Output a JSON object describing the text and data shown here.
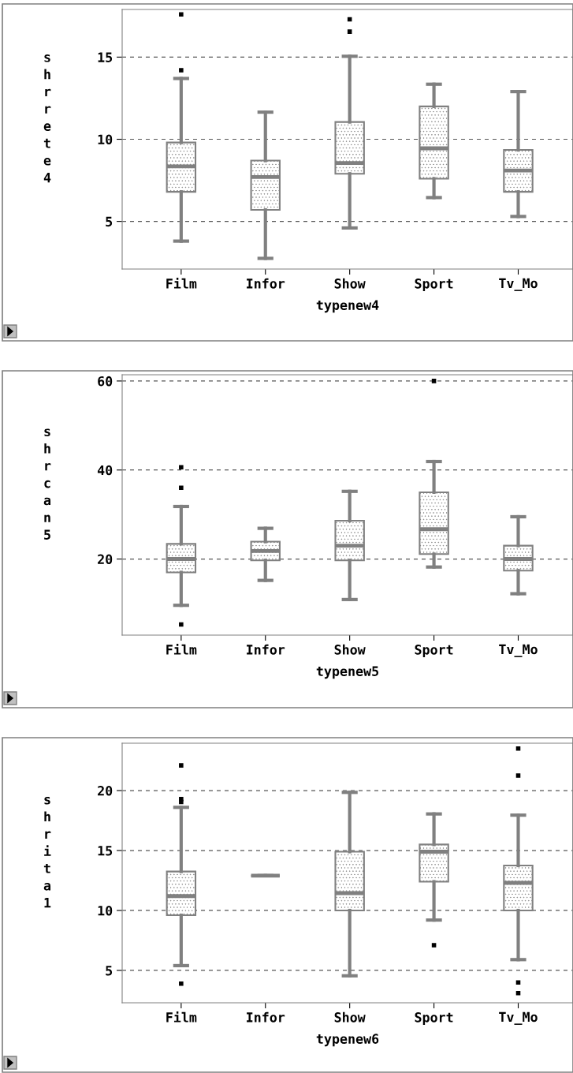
{
  "chart_data": [
    {
      "type": "box",
      "xlabel": "typenew4",
      "ylabel": "shrrete4",
      "categories": [
        "Film",
        "Infor",
        "Show",
        "Sport",
        "Tv_Mo"
      ],
      "color": "#808080",
      "grid": "y",
      "ylim": [
        2.1,
        17.9
      ],
      "yticks": [
        5,
        10,
        15
      ],
      "boxes": [
        {
          "low": 3.8,
          "q1": 6.8,
          "median": 8.35,
          "q3": 9.8,
          "high": 13.7,
          "outliers": [
            14.2,
            17.6
          ]
        },
        {
          "low": 2.75,
          "q1": 5.7,
          "median": 7.7,
          "q3": 8.7,
          "high": 11.65
        },
        {
          "low": 4.6,
          "q1": 7.9,
          "median": 8.55,
          "q3": 11.05,
          "high": 15.05,
          "outliers": [
            16.55,
            17.3
          ]
        },
        {
          "low": 6.45,
          "q1": 7.6,
          "median": 9.45,
          "q3": 12.0,
          "high": 13.35
        },
        {
          "low": 5.3,
          "q1": 6.8,
          "median": 8.1,
          "q3": 9.35,
          "high": 12.9
        }
      ]
    },
    {
      "type": "box",
      "xlabel": "typenew5",
      "ylabel": "shrcan5",
      "categories": [
        "Film",
        "Infor",
        "Show",
        "Sport",
        "Tv_Mo"
      ],
      "color": "#808080",
      "grid": "y",
      "ylim": [
        2.9,
        61.4
      ],
      "yticks": [
        20,
        40,
        60
      ],
      "boxes": [
        {
          "low": 9.6,
          "q1": 17.0,
          "median": 20,
          "q3": 23.4,
          "high": 31.8,
          "outliers": [
            5.3,
            36.0,
            40.6
          ]
        },
        {
          "low": 15.2,
          "q1": 19.7,
          "median": 21.8,
          "q3": 23.9,
          "high": 26.9
        },
        {
          "low": 10.9,
          "q1": 19.7,
          "median": 23.0,
          "q3": 28.6,
          "high": 35.2
        },
        {
          "low": 18.2,
          "q1": 21.1,
          "median": 26.7,
          "q3": 35.0,
          "high": 41.9,
          "outliers": [
            60.0
          ]
        },
        {
          "low": 12.2,
          "q1": 17.4,
          "median": 20,
          "q3": 23.0,
          "high": 29.5
        }
      ]
    },
    {
      "type": "box",
      "xlabel": "typenew6",
      "ylabel": "shrita1",
      "categories": [
        "Film",
        "Infor",
        "Show",
        "Sport",
        "Tv_Mo"
      ],
      "color": "#808080",
      "grid": "y",
      "ylim": [
        2.3,
        23.95
      ],
      "yticks": [
        5,
        10,
        15,
        20
      ],
      "boxes": [
        {
          "low": 5.4,
          "q1": 9.6,
          "median": 11.2,
          "q3": 13.25,
          "high": 18.6,
          "outliers": [
            3.9,
            19.05,
            19.3,
            22.1
          ]
        },
        {
          "low": 12.9,
          "q1": 12.9,
          "median": 12.9,
          "q3": 12.9,
          "high": 12.9
        },
        {
          "low": 4.55,
          "q1": 10.0,
          "median": 11.45,
          "q3": 14.9,
          "high": 19.85
        },
        {
          "low": 9.2,
          "q1": 12.4,
          "median": 14.9,
          "q3": 15.5,
          "high": 18.05,
          "outliers": [
            7.1
          ]
        },
        {
          "low": 5.9,
          "q1": 10.0,
          "median": 12.3,
          "q3": 13.75,
          "high": 17.95,
          "outliers": [
            3.1,
            4.0,
            21.25,
            23.5
          ]
        }
      ]
    }
  ]
}
